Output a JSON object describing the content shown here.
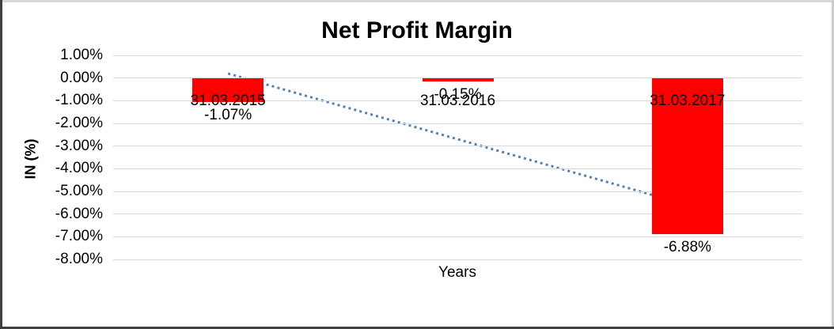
{
  "chart_data": {
    "type": "bar",
    "title": "Net Profit Margin",
    "xlabel": "Years",
    "ylabel": "IN (%)",
    "categories": [
      "31.03.2015",
      "31.03.2016",
      "31.03.2017"
    ],
    "values": [
      -1.07,
      -0.15,
      -6.88
    ],
    "data_labels": [
      "-1.07%",
      "-0.15%",
      "-6.88%"
    ],
    "ylim": [
      -8,
      1
    ],
    "ytick_labels": [
      "1.00%",
      "0.00%",
      "-1.00%",
      "-2.00%",
      "-3.00%",
      "-4.00%",
      "-5.00%",
      "-6.00%",
      "-7.00%",
      "-8.00%"
    ],
    "ytick_values": [
      1,
      0,
      -1,
      -2,
      -3,
      -4,
      -5,
      -6,
      -7,
      -8
    ],
    "grid": true,
    "legend": "none",
    "bar_color": "#ff0000",
    "gridline_color": "#d9d9d9",
    "trendline": {
      "type": "linear",
      "style": "dotted",
      "color": "#4f81bd",
      "start_value_pct": 0.2,
      "end_value_pct": -5.6
    }
  }
}
